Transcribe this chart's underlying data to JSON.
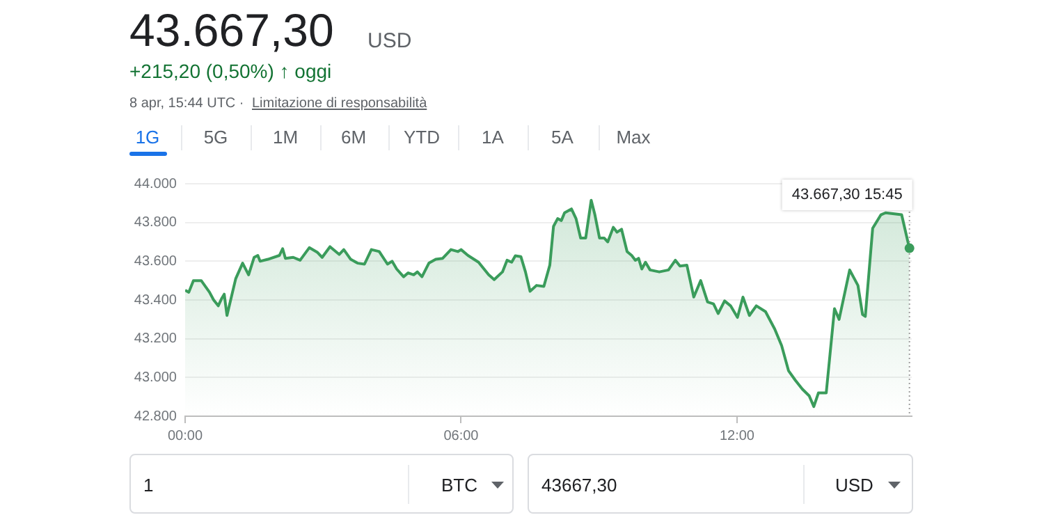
{
  "chart_data": {
    "type": "area",
    "title": "43.667,30",
    "subtitle": "+215,20 (0,50%) ↑ oggi",
    "annotations": [
      "USD",
      "8 apr, 15:44 UTC ·",
      "Limitazione di responsabilità",
      "1G",
      "5G",
      "1M",
      "6M",
      "YTD",
      "1A",
      "5A",
      "Max",
      "1",
      "BTC",
      "43667,30",
      "USD",
      {
        "text": "43.667,30 15:45",
        "x": 15.75,
        "y": 43667.3
      }
    ],
    "series": [
      {
        "color": "#3a9c5b",
        "x": [
          0,
          0.08,
          0.18,
          0.35,
          0.53,
          0.62,
          0.72,
          0.8,
          0.85,
          0.91,
          1.1,
          1.25,
          1.38,
          1.5,
          1.58,
          1.63,
          1.8,
          2.05,
          2.12,
          2.18,
          2.35,
          2.5,
          2.7,
          2.88,
          2.98,
          3.15,
          3.35,
          3.45,
          3.6,
          3.75,
          3.9,
          4.05,
          4.22,
          4.4,
          4.5,
          4.6,
          4.75,
          4.85,
          4.97,
          5.05,
          5.15,
          5.3,
          5.45,
          5.6,
          5.78,
          5.93,
          6.0,
          6.15,
          6.38,
          6.6,
          6.72,
          6.9,
          7.0,
          7.1,
          7.18,
          7.3,
          7.4,
          7.5,
          7.64,
          7.8,
          7.93,
          8.01,
          8.1,
          8.18,
          8.25,
          8.4,
          8.5,
          8.6,
          8.71,
          8.83,
          8.91,
          9.01,
          9.11,
          9.19,
          9.31,
          9.39,
          9.49,
          9.61,
          9.71,
          9.79,
          9.86,
          9.93,
          10.01,
          10.11,
          10.31,
          10.51,
          10.66,
          10.76,
          10.91,
          11.06,
          11.21,
          11.36,
          11.49,
          11.59,
          11.73,
          11.86,
          12.01,
          12.13,
          12.27,
          12.42,
          12.62,
          12.82,
          12.97,
          13.12,
          13.27,
          13.42,
          13.57,
          13.67,
          13.77,
          13.94,
          14.12,
          14.22,
          14.45,
          14.63,
          14.73,
          14.79,
          14.95,
          15.13,
          15.23,
          15.58,
          15.75
        ],
        "values": [
          43450,
          43440,
          43500,
          43500,
          43440,
          43400,
          43370,
          43410,
          43430,
          43320,
          43510,
          43590,
          43530,
          43620,
          43630,
          43600,
          43610,
          43630,
          43665,
          43615,
          43620,
          43605,
          43670,
          43645,
          43620,
          43675,
          43635,
          43660,
          43610,
          43590,
          43585,
          43660,
          43650,
          43585,
          43600,
          43560,
          43520,
          43540,
          43530,
          43545,
          43520,
          43590,
          43610,
          43615,
          43660,
          43650,
          43660,
          43630,
          43595,
          43530,
          43505,
          43545,
          43605,
          43595,
          43628,
          43624,
          43545,
          43445,
          43475,
          43470,
          43580,
          43780,
          43820,
          43810,
          43850,
          43870,
          43820,
          43720,
          43720,
          43915,
          43840,
          43720,
          43720,
          43700,
          43775,
          43750,
          43765,
          43650,
          43630,
          43605,
          43615,
          43560,
          43595,
          43555,
          43545,
          43555,
          43605,
          43575,
          43580,
          43415,
          43500,
          43390,
          43380,
          43330,
          43395,
          43370,
          43310,
          43415,
          43320,
          43370,
          43340,
          43250,
          43165,
          43035,
          42985,
          42940,
          42905,
          42850,
          42920,
          42920,
          43355,
          43300,
          43555,
          43475,
          43325,
          43315,
          43770,
          43840,
          43850,
          43840,
          43665
        ]
      }
    ],
    "xlim": [
      0,
      15.8
    ],
    "xticks": [
      {
        "value": 0,
        "label": "00:00"
      },
      {
        "value": 6,
        "label": "06:00"
      },
      {
        "value": 12,
        "label": "12:00"
      }
    ],
    "ylim": [
      42800,
      44000
    ],
    "yticks": [
      {
        "value": 42800,
        "label": "42.800"
      },
      {
        "value": 43000,
        "label": "43.000"
      },
      {
        "value": 43200,
        "label": "43.200"
      },
      {
        "value": 43400,
        "label": "43.400"
      },
      {
        "value": 43600,
        "label": "43.600"
      },
      {
        "value": 43800,
        "label": "43.800"
      },
      {
        "value": 44000,
        "label": "44.000"
      }
    ],
    "ref_lines": [
      {
        "axis": "x",
        "value": 15.75,
        "color": "#9e9e9e",
        "line_style": "dotted"
      }
    ],
    "grid": "y"
  }
}
